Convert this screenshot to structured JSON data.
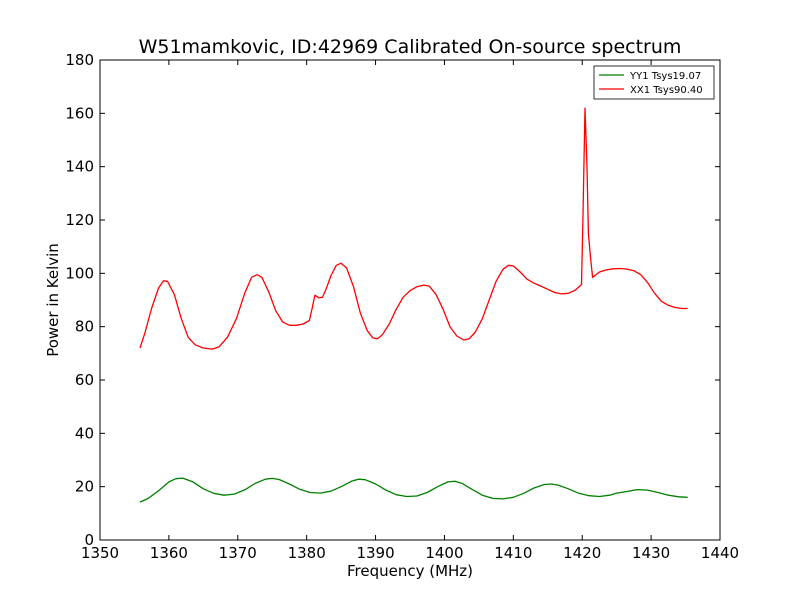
{
  "chart_data": {
    "type": "line",
    "title": "W51mamkovic, ID:42969 Calibrated On-source spectrum",
    "xlabel": "Frequency (MHz)",
    "ylabel": "Power in Kelvin",
    "xlim": [
      1350,
      1440
    ],
    "ylim": [
      0,
      180
    ],
    "xticks": [
      1350,
      1360,
      1370,
      1380,
      1390,
      1400,
      1410,
      1420,
      1430,
      1440
    ],
    "yticks": [
      0,
      20,
      40,
      60,
      80,
      100,
      120,
      140,
      160,
      180
    ],
    "grid": false,
    "legend_position": "top-right",
    "series": [
      {
        "name": "YY1 Tsys19.07",
        "color": "#008000",
        "points": [
          [
            1355.8,
            14.2
          ],
          [
            1357.0,
            15.6
          ],
          [
            1358.5,
            18.5
          ],
          [
            1360.0,
            21.8
          ],
          [
            1361.0,
            23.0
          ],
          [
            1362.0,
            23.2
          ],
          [
            1363.5,
            21.8
          ],
          [
            1365.0,
            19.2
          ],
          [
            1366.5,
            17.5
          ],
          [
            1368.0,
            16.8
          ],
          [
            1369.5,
            17.2
          ],
          [
            1371.0,
            18.8
          ],
          [
            1372.5,
            21.2
          ],
          [
            1374.0,
            22.8
          ],
          [
            1375.0,
            23.1
          ],
          [
            1376.0,
            22.7
          ],
          [
            1377.5,
            21.0
          ],
          [
            1379.0,
            19.0
          ],
          [
            1380.5,
            17.8
          ],
          [
            1382.0,
            17.6
          ],
          [
            1383.5,
            18.3
          ],
          [
            1385.0,
            20.0
          ],
          [
            1386.5,
            22.0
          ],
          [
            1387.5,
            22.8
          ],
          [
            1388.5,
            22.6
          ],
          [
            1390.0,
            21.0
          ],
          [
            1391.5,
            18.7
          ],
          [
            1393.0,
            17.0
          ],
          [
            1394.5,
            16.3
          ],
          [
            1396.0,
            16.5
          ],
          [
            1397.5,
            17.8
          ],
          [
            1399.0,
            20.0
          ],
          [
            1400.5,
            21.8
          ],
          [
            1401.5,
            22.0
          ],
          [
            1402.5,
            21.3
          ],
          [
            1404.0,
            19.0
          ],
          [
            1405.5,
            16.8
          ],
          [
            1407.0,
            15.6
          ],
          [
            1408.5,
            15.4
          ],
          [
            1410.0,
            16.0
          ],
          [
            1411.5,
            17.5
          ],
          [
            1413.0,
            19.5
          ],
          [
            1414.5,
            20.8
          ],
          [
            1415.5,
            21.0
          ],
          [
            1416.5,
            20.6
          ],
          [
            1418.0,
            19.2
          ],
          [
            1419.5,
            17.5
          ],
          [
            1421.0,
            16.6
          ],
          [
            1422.5,
            16.3
          ],
          [
            1424.0,
            16.8
          ],
          [
            1425.0,
            17.6
          ],
          [
            1426.5,
            18.2
          ],
          [
            1428.0,
            18.9
          ],
          [
            1429.5,
            18.7
          ],
          [
            1431.0,
            17.8
          ],
          [
            1432.5,
            16.8
          ],
          [
            1434.0,
            16.2
          ],
          [
            1435.3,
            16.0
          ]
        ]
      },
      {
        "name": "XX1 Tsys90.40",
        "color": "#ff0000",
        "points": [
          [
            1355.8,
            72.0
          ],
          [
            1356.5,
            77.5
          ],
          [
            1357.5,
            87.0
          ],
          [
            1358.5,
            94.5
          ],
          [
            1359.2,
            97.2
          ],
          [
            1359.8,
            97.0
          ],
          [
            1360.8,
            92.0
          ],
          [
            1361.8,
            83.0
          ],
          [
            1362.8,
            76.0
          ],
          [
            1363.8,
            73.2
          ],
          [
            1365.0,
            72.0
          ],
          [
            1366.3,
            71.6
          ],
          [
            1367.3,
            72.5
          ],
          [
            1368.5,
            76.0
          ],
          [
            1369.8,
            83.0
          ],
          [
            1371.0,
            92.5
          ],
          [
            1372.0,
            98.5
          ],
          [
            1372.8,
            99.5
          ],
          [
            1373.5,
            98.5
          ],
          [
            1374.5,
            93.0
          ],
          [
            1375.5,
            86.0
          ],
          [
            1376.5,
            81.8
          ],
          [
            1377.5,
            80.5
          ],
          [
            1378.5,
            80.5
          ],
          [
            1379.5,
            81.0
          ],
          [
            1380.4,
            82.3
          ],
          [
            1380.8,
            87.0
          ],
          [
            1381.2,
            91.8
          ],
          [
            1381.8,
            90.8
          ],
          [
            1382.3,
            91.0
          ],
          [
            1382.8,
            94.0
          ],
          [
            1383.5,
            99.0
          ],
          [
            1384.3,
            103.0
          ],
          [
            1385.0,
            103.8
          ],
          [
            1385.8,
            102.0
          ],
          [
            1386.8,
            95.0
          ],
          [
            1387.8,
            85.0
          ],
          [
            1388.8,
            78.5
          ],
          [
            1389.6,
            75.8
          ],
          [
            1390.3,
            75.5
          ],
          [
            1391.0,
            77.0
          ],
          [
            1392.0,
            81.0
          ],
          [
            1393.0,
            86.5
          ],
          [
            1394.0,
            91.0
          ],
          [
            1395.0,
            93.5
          ],
          [
            1396.0,
            95.0
          ],
          [
            1397.0,
            95.6
          ],
          [
            1397.8,
            95.2
          ],
          [
            1398.8,
            92.0
          ],
          [
            1399.8,
            86.5
          ],
          [
            1400.8,
            80.0
          ],
          [
            1401.8,
            76.5
          ],
          [
            1402.8,
            75.0
          ],
          [
            1403.6,
            75.5
          ],
          [
            1404.5,
            78.0
          ],
          [
            1405.5,
            83.0
          ],
          [
            1406.5,
            90.0
          ],
          [
            1407.5,
            97.0
          ],
          [
            1408.5,
            101.5
          ],
          [
            1409.3,
            103.0
          ],
          [
            1410.0,
            102.8
          ],
          [
            1411.0,
            100.5
          ],
          [
            1412.0,
            97.8
          ],
          [
            1413.0,
            96.3
          ],
          [
            1414.0,
            95.2
          ],
          [
            1415.0,
            94.0
          ],
          [
            1416.0,
            92.8
          ],
          [
            1417.0,
            92.3
          ],
          [
            1418.0,
            92.5
          ],
          [
            1419.0,
            93.7
          ],
          [
            1419.9,
            95.8
          ],
          [
            1420.1,
            120.0
          ],
          [
            1420.4,
            162.0
          ],
          [
            1420.7,
            140.0
          ],
          [
            1420.9,
            115.0
          ],
          [
            1421.2,
            106.0
          ],
          [
            1421.5,
            98.5
          ],
          [
            1422.5,
            100.5
          ],
          [
            1423.5,
            101.3
          ],
          [
            1424.5,
            101.7
          ],
          [
            1425.5,
            101.8
          ],
          [
            1426.5,
            101.6
          ],
          [
            1427.5,
            101.0
          ],
          [
            1428.5,
            99.5
          ],
          [
            1429.5,
            96.5
          ],
          [
            1430.5,
            92.5
          ],
          [
            1431.5,
            89.5
          ],
          [
            1432.5,
            88.0
          ],
          [
            1433.5,
            87.2
          ],
          [
            1434.5,
            86.8
          ],
          [
            1435.3,
            86.8
          ]
        ]
      }
    ]
  }
}
